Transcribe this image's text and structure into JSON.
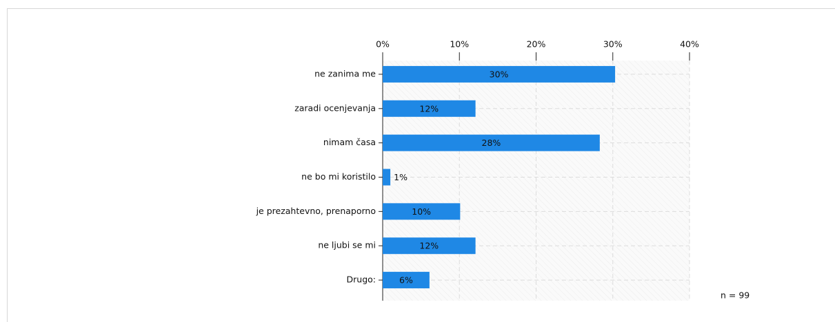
{
  "chart_data": {
    "type": "bar",
    "orientation": "horizontal",
    "categories": [
      "ne zanima me",
      "zaradi ocenjevanja",
      "nimam časa",
      "ne bo mi koristilo",
      "je prezahtevno, prenaporno",
      "ne ljubi se mi",
      "Drugo:"
    ],
    "values": [
      30.3,
      12.1,
      28.3,
      1.0,
      10.1,
      12.1,
      6.1
    ],
    "value_labels": [
      "30%",
      "12%",
      "28%",
      "1%",
      "10%",
      "12%",
      "6%"
    ],
    "color": "#1f88e5",
    "xlim": [
      0,
      40
    ],
    "xticks": [
      {
        "value": 0,
        "label": "0%"
      },
      {
        "value": 10,
        "label": "10%"
      },
      {
        "value": 20,
        "label": "20%"
      },
      {
        "value": 30,
        "label": "30%"
      },
      {
        "value": 40,
        "label": "40%"
      }
    ],
    "grid": true,
    "annotation": "n = 99"
  }
}
